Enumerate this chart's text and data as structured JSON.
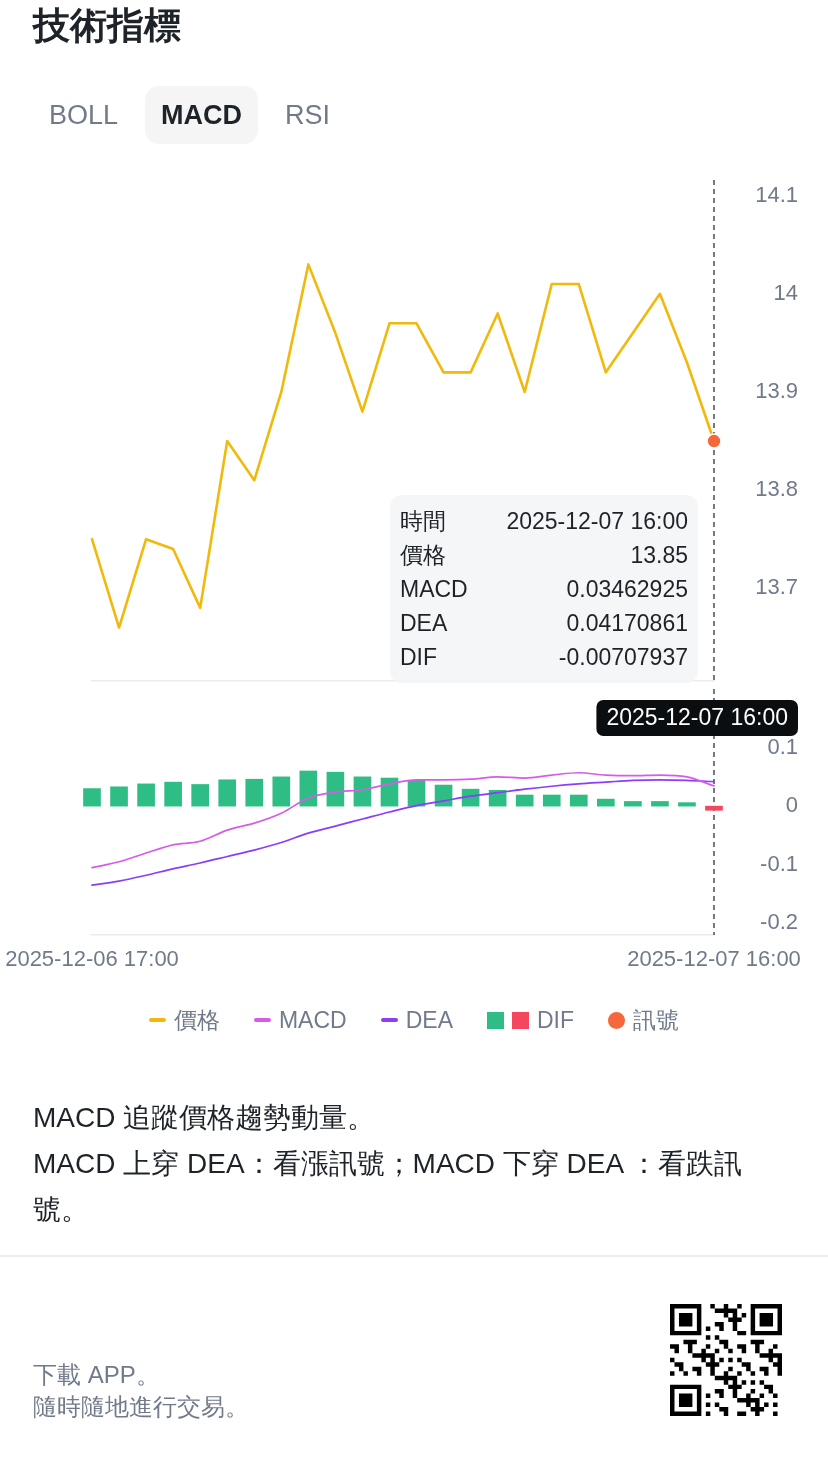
{
  "chart_data": [
    {
      "type": "other",
      "title": "技術指標",
      "annotations": [
        "BOLL",
        "MACD",
        "RSI"
      ]
    },
    {
      "type": "line",
      "categories": [
        "2025-12-06 17:00",
        null,
        null,
        null,
        null,
        null,
        null,
        null,
        null,
        null,
        null,
        null,
        null,
        null,
        null,
        null,
        null,
        null,
        null,
        null,
        null,
        null,
        null,
        "2025-12-07 16:00"
      ],
      "series": [
        {
          "name": "價格",
          "color": "#f0b90b",
          "values": [
            13.75,
            13.66,
            13.75,
            13.74,
            13.68,
            13.85,
            13.81,
            13.9,
            14.03,
            13.96,
            13.88,
            13.97,
            13.97,
            13.92,
            13.92,
            13.98,
            13.9,
            14.01,
            14.01,
            13.92,
            13.96,
            14,
            13.93,
            13.85
          ]
        },
        {
          "name": "訊號",
          "type": "scatter",
          "marker": "circle",
          "color": "#f6673c",
          "values": [
            null,
            null,
            null,
            null,
            null,
            null,
            null,
            null,
            null,
            null,
            null,
            null,
            null,
            null,
            null,
            null,
            null,
            null,
            null,
            null,
            null,
            null,
            null,
            13.85
          ]
        }
      ],
      "ylim": [
        13.606,
        14.116
      ],
      "yticks": [
        13.7,
        13.8,
        13.9,
        14,
        14.1
      ],
      "tick_labels": "y",
      "legend": "bottom",
      "ref_lines": [
        {
          "axis": "x",
          "value": "2025-12-07 16:00",
          "color": "#474d57",
          "line_style": "dashed"
        }
      ],
      "annotations": [
        "時間",
        "2025-12-07 16:00",
        "價格",
        "13.85",
        "MACD",
        "0.03462925",
        "DEA",
        "0.04170861",
        "DIF",
        "-0.00707937"
      ]
    },
    {
      "type": "bar",
      "categories": [
        "2025-12-06 17:00",
        null,
        null,
        null,
        null,
        null,
        null,
        null,
        null,
        null,
        null,
        null,
        null,
        null,
        null,
        null,
        null,
        null,
        null,
        null,
        null,
        null,
        null,
        "2025-12-07 16:00"
      ],
      "series": [
        {
          "name": "MACD",
          "type": "line",
          "color": "#d65ce8",
          "values": [
            -0.105,
            -0.095,
            -0.08,
            -0.066,
            -0.06,
            -0.041,
            -0.029,
            -0.012,
            0.014,
            0.024,
            0.028,
            0.038,
            0.045,
            0.045,
            0.046,
            0.05,
            0.048,
            0.053,
            0.057,
            0.053,
            0.052,
            0.053,
            0.05,
            0.03462925
          ]
        },
        {
          "name": "DEA",
          "type": "line",
          "color": "#8b3dfa",
          "values": [
            -0.135,
            -0.128,
            -0.118,
            -0.107,
            -0.097,
            -0.086,
            -0.075,
            -0.062,
            -0.046,
            -0.034,
            -0.022,
            -0.01,
            0.001,
            0.009,
            0.017,
            0.023,
            0.029,
            0.034,
            0.038,
            0.041,
            0.044,
            0.045,
            0.044,
            0.04170861
          ]
        },
        {
          "name": "DIF",
          "colors": [
            "#2ebd85",
            "#2ebd85",
            "#2ebd85",
            "#2ebd85",
            "#2ebd85",
            "#2ebd85",
            "#2ebd85",
            "#2ebd85",
            "#2ebd85",
            "#2ebd85",
            "#2ebd85",
            "#2ebd85",
            "#2ebd85",
            "#2ebd85",
            "#2ebd85",
            "#2ebd85",
            "#2ebd85",
            "#2ebd85",
            "#2ebd85",
            "#2ebd85",
            "#2ebd85",
            "#2ebd85",
            "#2ebd85",
            "#f6465d"
          ],
          "values": [
            0.03,
            0.033,
            0.038,
            0.041,
            0.037,
            0.045,
            0.046,
            0.05,
            0.06,
            0.058,
            0.05,
            0.048,
            0.044,
            0.036,
            0.029,
            0.027,
            0.019,
            0.019,
            0.019,
            0.012,
            0.008,
            0.008,
            0.006,
            -0.00707937
          ]
        }
      ],
      "ylim": [
        -0.22,
        0.2
      ],
      "yticks": [
        -0.2,
        -0.1,
        0,
        0.1
      ],
      "legend": "bottom",
      "ref_lines": [
        {
          "axis": "x",
          "value": "2025-12-07 16:00",
          "label": "2025-12-07 16:00",
          "color": "#474d57",
          "line_style": "dashed"
        }
      ]
    },
    {
      "type": "other",
      "annotations": [
        "MACD 追蹤價格趨勢動量。",
        "MACD 上穿 DEA：看漲訊號；MACD 下穿 DEA ：看跌訊號。"
      ]
    },
    {
      "type": "other",
      "annotations": [
        "下載 APP。",
        "隨時隨地進行交易。"
      ]
    }
  ]
}
